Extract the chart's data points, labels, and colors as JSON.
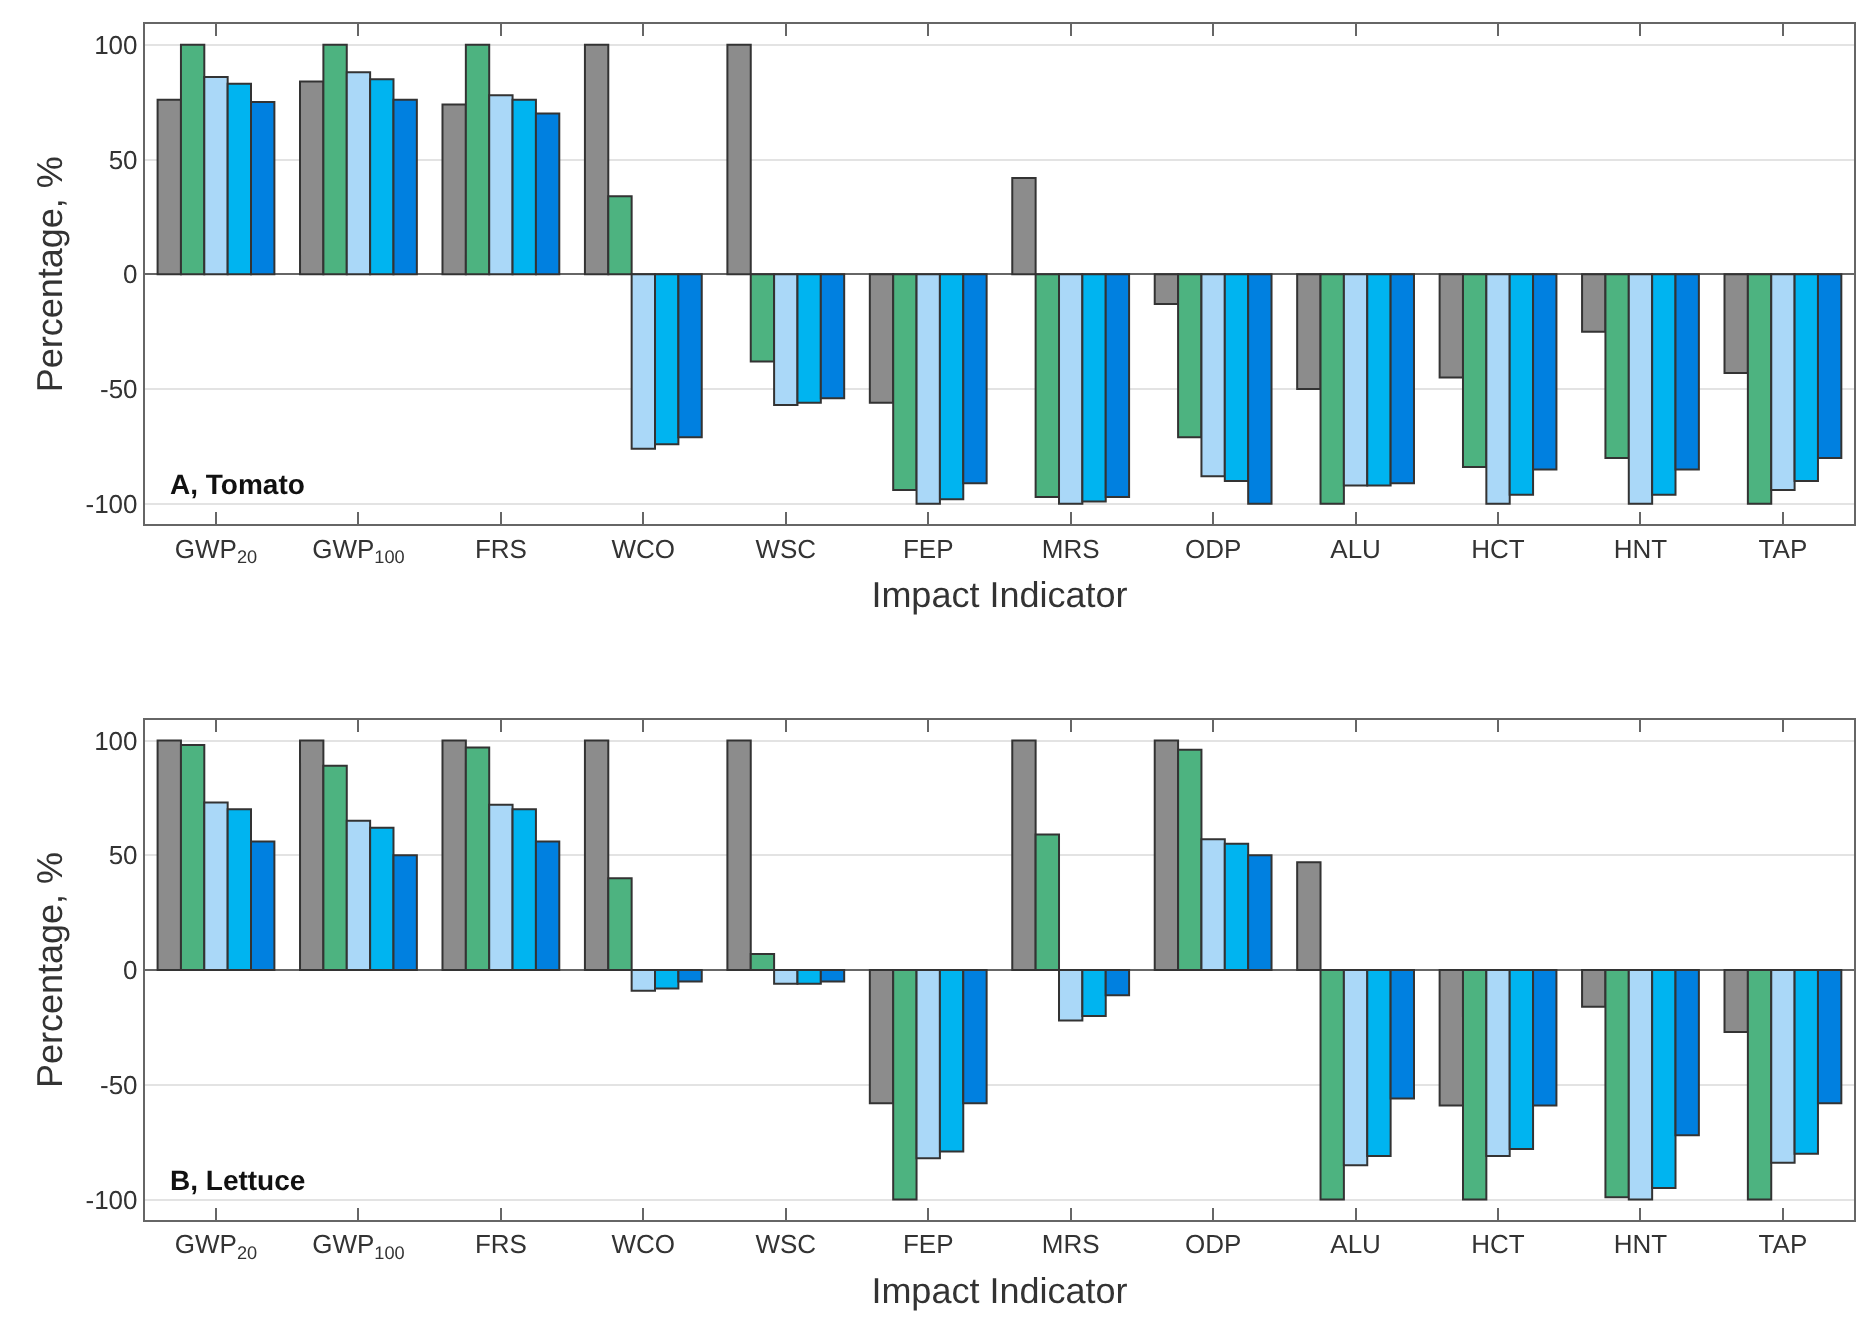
{
  "chart_data": [
    {
      "type": "bar",
      "categories": [
        "GWP$_{20}$",
        "GWP$_{100}$",
        "FRS",
        "WCO",
        "WSC",
        "FEP",
        "MRS",
        "ODP",
        "ALU",
        "HCT",
        "HNT",
        "TAP"
      ],
      "series": [
        {
          "color": "#8c8c8c",
          "values": [
            76,
            84,
            74,
            100,
            100,
            -56,
            42,
            -13,
            -50,
            -45,
            -25,
            -43
          ]
        },
        {
          "color": "#4db380",
          "values": [
            100,
            100,
            100,
            34,
            -38,
            -94,
            -97,
            -71,
            -100,
            -84,
            -80,
            -100
          ]
        },
        {
          "color": "#aad8f8",
          "values": [
            86,
            88,
            78,
            -76,
            -57,
            -100,
            -100,
            -88,
            -92,
            -100,
            -100,
            -94
          ]
        },
        {
          "color": "#00b4f0",
          "values": [
            83,
            85,
            76,
            -74,
            -56,
            -98,
            -99,
            -90,
            -92,
            -96,
            -96,
            -90
          ]
        },
        {
          "color": "#0080e0",
          "values": [
            75,
            76,
            70,
            -71,
            -54,
            -91,
            -97,
            -100,
            -91,
            -85,
            -85,
            -80
          ]
        }
      ],
      "xlabel": "Impact Indicator",
      "ylabel": "Percentage, %",
      "annotations": [
        "A, Tomato"
      ],
      "ylim": [
        -109,
        109
      ],
      "yticks": [
        -100,
        -50,
        0,
        50,
        100
      ],
      "grid": "y"
    },
    {
      "type": "bar",
      "categories": [
        "GWP$_{20}$",
        "GWP$_{100}$",
        "FRS",
        "WCO",
        "WSC",
        "FEP",
        "MRS",
        "ODP",
        "ALU",
        "HCT",
        "HNT",
        "TAP"
      ],
      "series": [
        {
          "color": "#8c8c8c",
          "values": [
            100,
            100,
            100,
            100,
            100,
            -58,
            100,
            100,
            47,
            -59,
            -16,
            -27
          ]
        },
        {
          "color": "#4db380",
          "values": [
            98,
            89,
            97,
            40,
            7,
            -100,
            59,
            96,
            -100,
            -100,
            -99,
            -100
          ]
        },
        {
          "color": "#aad8f8",
          "values": [
            73,
            65,
            72,
            -9,
            -6,
            -82,
            -22,
            57,
            -85,
            -81,
            -100,
            -84
          ]
        },
        {
          "color": "#00b4f0",
          "values": [
            70,
            62,
            70,
            -8,
            -6,
            -79,
            -20,
            55,
            -81,
            -78,
            -95,
            -80
          ]
        },
        {
          "color": "#0080e0",
          "values": [
            56,
            50,
            56,
            -5,
            -5,
            -58,
            -11,
            50,
            -56,
            -59,
            -72,
            -58
          ]
        }
      ],
      "xlabel": "Impact Indicator",
      "ylabel": "Percentage, %",
      "annotations": [
        "B, Lettuce"
      ],
      "ylim": [
        -109,
        109
      ],
      "yticks": [
        -100,
        -50,
        0,
        50,
        100
      ],
      "grid": "y"
    }
  ]
}
